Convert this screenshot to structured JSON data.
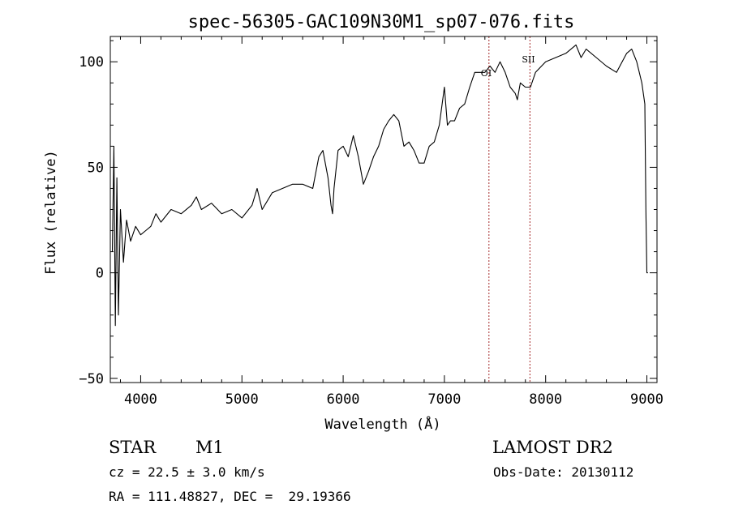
{
  "chart_data": {
    "type": "line",
    "title": "spec-56305-GAC109N30M1_sp07-076.fits",
    "xlabel": "Wavelength (Å)",
    "ylabel": "Flux (relative)",
    "xlim": [
      3700,
      9100
    ],
    "ylim": [
      -52,
      112
    ],
    "xticks": [
      4000,
      5000,
      6000,
      7000,
      8000,
      9000
    ],
    "yticks": [
      -50,
      0,
      50,
      100
    ],
    "xtick_labels": [
      "4000",
      "5000",
      "6000",
      "7000",
      "8000",
      "9000"
    ],
    "ytick_labels": [
      "−50",
      "0",
      "50",
      "100"
    ],
    "series": [
      {
        "x": [
          3720,
          3735,
          3750,
          3765,
          3780,
          3800,
          3830,
          3860,
          3900,
          3950,
          4000,
          4050,
          4100,
          4150,
          4200,
          4300,
          4400,
          4500,
          4550,
          4600,
          4700,
          4800,
          4900,
          5000,
          5100,
          5150,
          5200,
          5300,
          5400,
          5500,
          5600,
          5700,
          5760,
          5800,
          5850,
          5880,
          5895,
          5910,
          5950,
          6000,
          6050,
          6100,
          6150,
          6200,
          6250,
          6300,
          6350,
          6400,
          6450,
          6500,
          6550,
          6600,
          6650,
          6700,
          6750,
          6800,
          6850,
          6900,
          6950,
          7000,
          7030,
          7060,
          7100,
          7150,
          7200,
          7250,
          7300,
          7350,
          7400,
          7450,
          7500,
          7550,
          7600,
          7650,
          7700,
          7720,
          7750,
          7800,
          7850,
          7900,
          8000,
          8100,
          8200,
          8300,
          8350,
          8400,
          8500,
          8600,
          8700,
          8800,
          8850,
          8900,
          8950,
          8980,
          8990,
          9000,
          9010
        ],
        "y": [
          10,
          60,
          -25,
          45,
          -20,
          30,
          5,
          25,
          15,
          22,
          18,
          20,
          22,
          28,
          24,
          30,
          28,
          32,
          36,
          30,
          33,
          28,
          30,
          26,
          32,
          40,
          30,
          38,
          40,
          42,
          42,
          40,
          55,
          58,
          45,
          32,
          28,
          40,
          58,
          60,
          55,
          65,
          55,
          42,
          48,
          55,
          60,
          68,
          72,
          75,
          72,
          60,
          62,
          58,
          52,
          52,
          60,
          62,
          70,
          88,
          70,
          72,
          72,
          78,
          80,
          88,
          95,
          95,
          95,
          98,
          95,
          100,
          95,
          88,
          85,
          82,
          90,
          88,
          88,
          95,
          100,
          102,
          104,
          108,
          102,
          106,
          102,
          98,
          95,
          104,
          106,
          100,
          90,
          80,
          30,
          0,
          0
        ]
      }
    ],
    "markers": [
      {
        "label": "OI",
        "x": 7440
      },
      {
        "label": "SII",
        "x": 7845
      }
    ],
    "grid": false,
    "line_color": "#000000",
    "marker_color": "#a52a2a"
  },
  "info": {
    "object_type": "STAR",
    "subclass": "M1",
    "survey": "LAMOST DR2",
    "cz": "cz = 22.5 ± 3.0 km/s",
    "obs_date": "Obs-Date: 20130112",
    "coords": "RA = 111.48827, DEC =  29.19366"
  }
}
